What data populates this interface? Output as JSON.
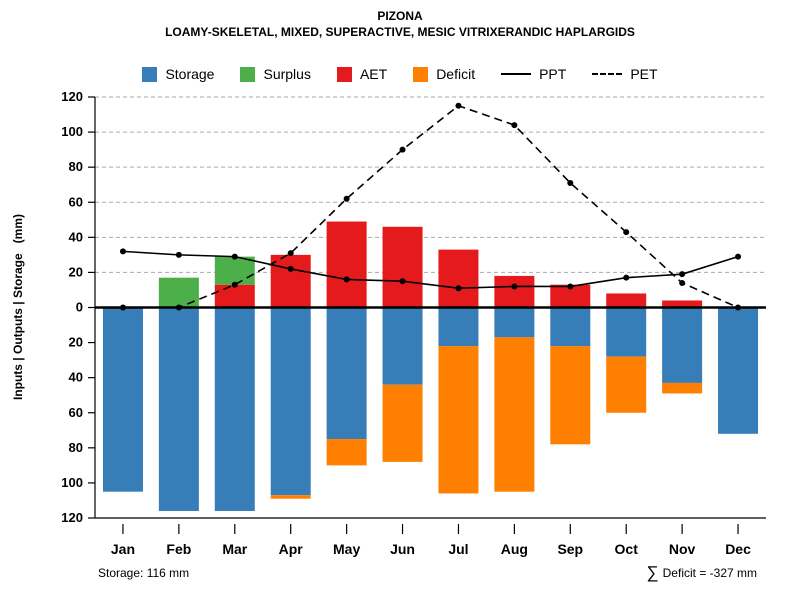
{
  "chart_data": {
    "type": "bar",
    "title": "PIZONA",
    "subtitle": "LOAMY-SKELETAL, MIXED, SUPERACTIVE, MESIC VITRIXERANDIC HAPLARGIDS",
    "ylabel": "Inputs | Outputs | Storage   (mm)",
    "months": [
      "Jan",
      "Feb",
      "Mar",
      "Apr",
      "May",
      "Jun",
      "Jul",
      "Aug",
      "Sep",
      "Oct",
      "Nov",
      "Dec"
    ],
    "yticks": [
      0,
      20,
      40,
      60,
      80,
      100,
      120
    ],
    "ylim_up": 120,
    "ylim_down": 120,
    "grid": "dashed-above-zero",
    "legend_position": "top-center",
    "colors": {
      "storage": "#377EB8",
      "surplus": "#4DAF4A",
      "aet": "#E41A1C",
      "deficit": "#FF7F00",
      "line": "#000000",
      "grid": "#AAAAAA"
    },
    "series": {
      "aet": {
        "label": "AET",
        "direction": "up",
        "values": [
          0,
          0,
          13,
          30,
          49,
          46,
          33,
          18,
          13,
          8,
          4,
          0
        ]
      },
      "surplus": {
        "label": "Surplus",
        "direction": "up",
        "values": [
          0,
          17,
          16,
          0,
          0,
          0,
          0,
          0,
          0,
          0,
          0,
          0
        ]
      },
      "storage": {
        "label": "Storage",
        "direction": "down",
        "values": [
          105,
          116,
          116,
          107,
          75,
          44,
          22,
          17,
          22,
          28,
          43,
          72
        ]
      },
      "deficit": {
        "label": "Deficit",
        "direction": "down",
        "values": [
          0,
          0,
          0,
          2,
          15,
          44,
          84,
          88,
          56,
          32,
          6,
          0
        ]
      },
      "ppt": {
        "label": "PPT",
        "style": "line-solid",
        "values": [
          32,
          30,
          29,
          22,
          16,
          15,
          11,
          12,
          12,
          17,
          19,
          29
        ]
      },
      "pet": {
        "label": "PET",
        "style": "line-dashed",
        "values": [
          0,
          0,
          13,
          31,
          62,
          90,
          115,
          104,
          71,
          43,
          14,
          0
        ]
      }
    },
    "legend": [
      {
        "key": "storage",
        "label": "Storage",
        "swatch": "rect"
      },
      {
        "key": "surplus",
        "label": "Surplus",
        "swatch": "rect"
      },
      {
        "key": "aet",
        "label": "AET",
        "swatch": "rect"
      },
      {
        "key": "deficit",
        "label": "Deficit",
        "swatch": "rect"
      },
      {
        "key": "ppt",
        "label": "PPT",
        "swatch": "line-solid"
      },
      {
        "key": "pet",
        "label": "PET",
        "swatch": "line-dashed"
      }
    ],
    "footnotes": {
      "left": "Storage: 116 mm",
      "right_symbol": "∑",
      "right": "Deficit = -327 mm"
    }
  }
}
